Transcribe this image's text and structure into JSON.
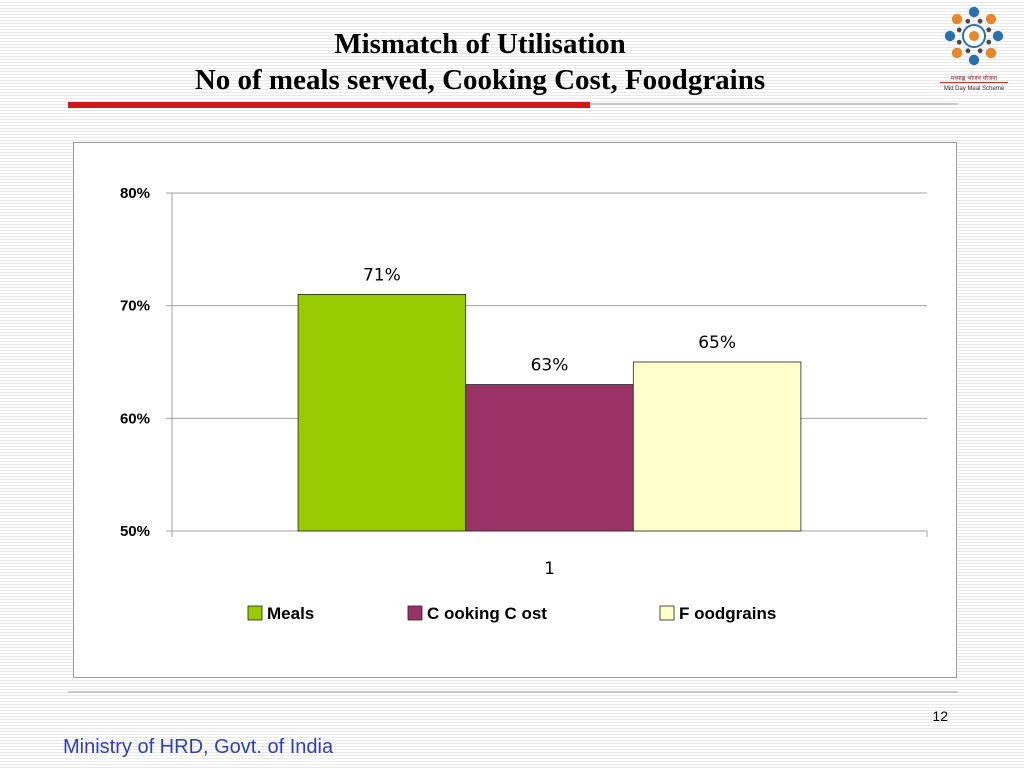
{
  "slide": {
    "title_line1": "Mismatch of Utilisation",
    "title_line2": "No of meals served, Cooking Cost, Foodgrains",
    "page_number": "12",
    "footer": "Ministry of HRD, Govt. of India",
    "logo": {
      "icon": "mid-day-meal-logo-icon",
      "caption_line1": "मध्याह्न भोजन योजना",
      "caption_line2": "Mid Day Meal Scheme"
    }
  },
  "colors": {
    "title_rule_red": "#d01818",
    "footer_blue": "#2a3fbf"
  },
  "chart_data": {
    "type": "bar",
    "categories": [
      "1"
    ],
    "series": [
      {
        "name": "Meals",
        "values": [
          0.71
        ],
        "label": "71%",
        "color": "#99cc00"
      },
      {
        "name": "C ooking C ost",
        "values": [
          0.63
        ],
        "label": "63%",
        "color": "#993366"
      },
      {
        "name": "F oodgrains",
        "values": [
          0.65
        ],
        "label": "65%",
        "color": "#ffffcc"
      }
    ],
    "yticks": [
      0.5,
      0.6,
      0.7,
      0.8
    ],
    "ytick_labels": [
      "50%",
      "60%",
      "70%",
      "80%"
    ],
    "ylim": [
      0.5,
      0.8
    ],
    "grid": true,
    "legend_position": "bottom"
  }
}
